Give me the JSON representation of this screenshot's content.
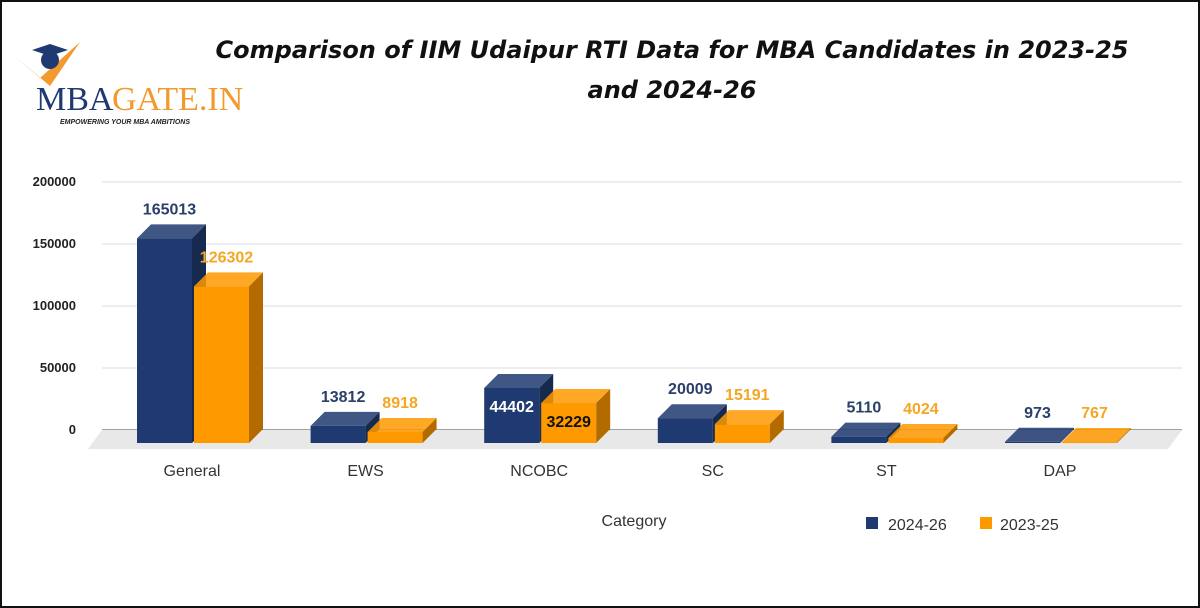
{
  "logo": {
    "text_main": "MBAGATE.IN",
    "tagline": "EMPOWERING YOUR MBA AMBITIONS"
  },
  "chart_data": {
    "type": "bar",
    "title": "Comparison of IIM Udaipur RTI Data for MBA Candidates in 2023-25 and 2024-26",
    "title_lines": [
      "Comparison of IIM Udaipur RTI Data for MBA Candidates in 2023-25",
      "and 2024-26"
    ],
    "xlabel": "Category",
    "ylabel": "",
    "categories": [
      "General",
      "EWS",
      "NCOBC",
      "SC",
      "ST",
      "DAP"
    ],
    "series": [
      {
        "name": "2024-26",
        "values": [
          165013,
          13812,
          44402,
          20009,
          5110,
          973
        ],
        "color": "#1f3a70"
      },
      {
        "name": "2023-25",
        "values": [
          126302,
          8918,
          32229,
          15191,
          4024,
          767
        ],
        "color": "#ff9900"
      }
    ],
    "ylim": [
      0,
      200000
    ],
    "yticks": [
      "0",
      "50000",
      "100000",
      "150000",
      "200000"
    ],
    "grid": true,
    "style": "3d",
    "legend_position": "bottom-right"
  }
}
